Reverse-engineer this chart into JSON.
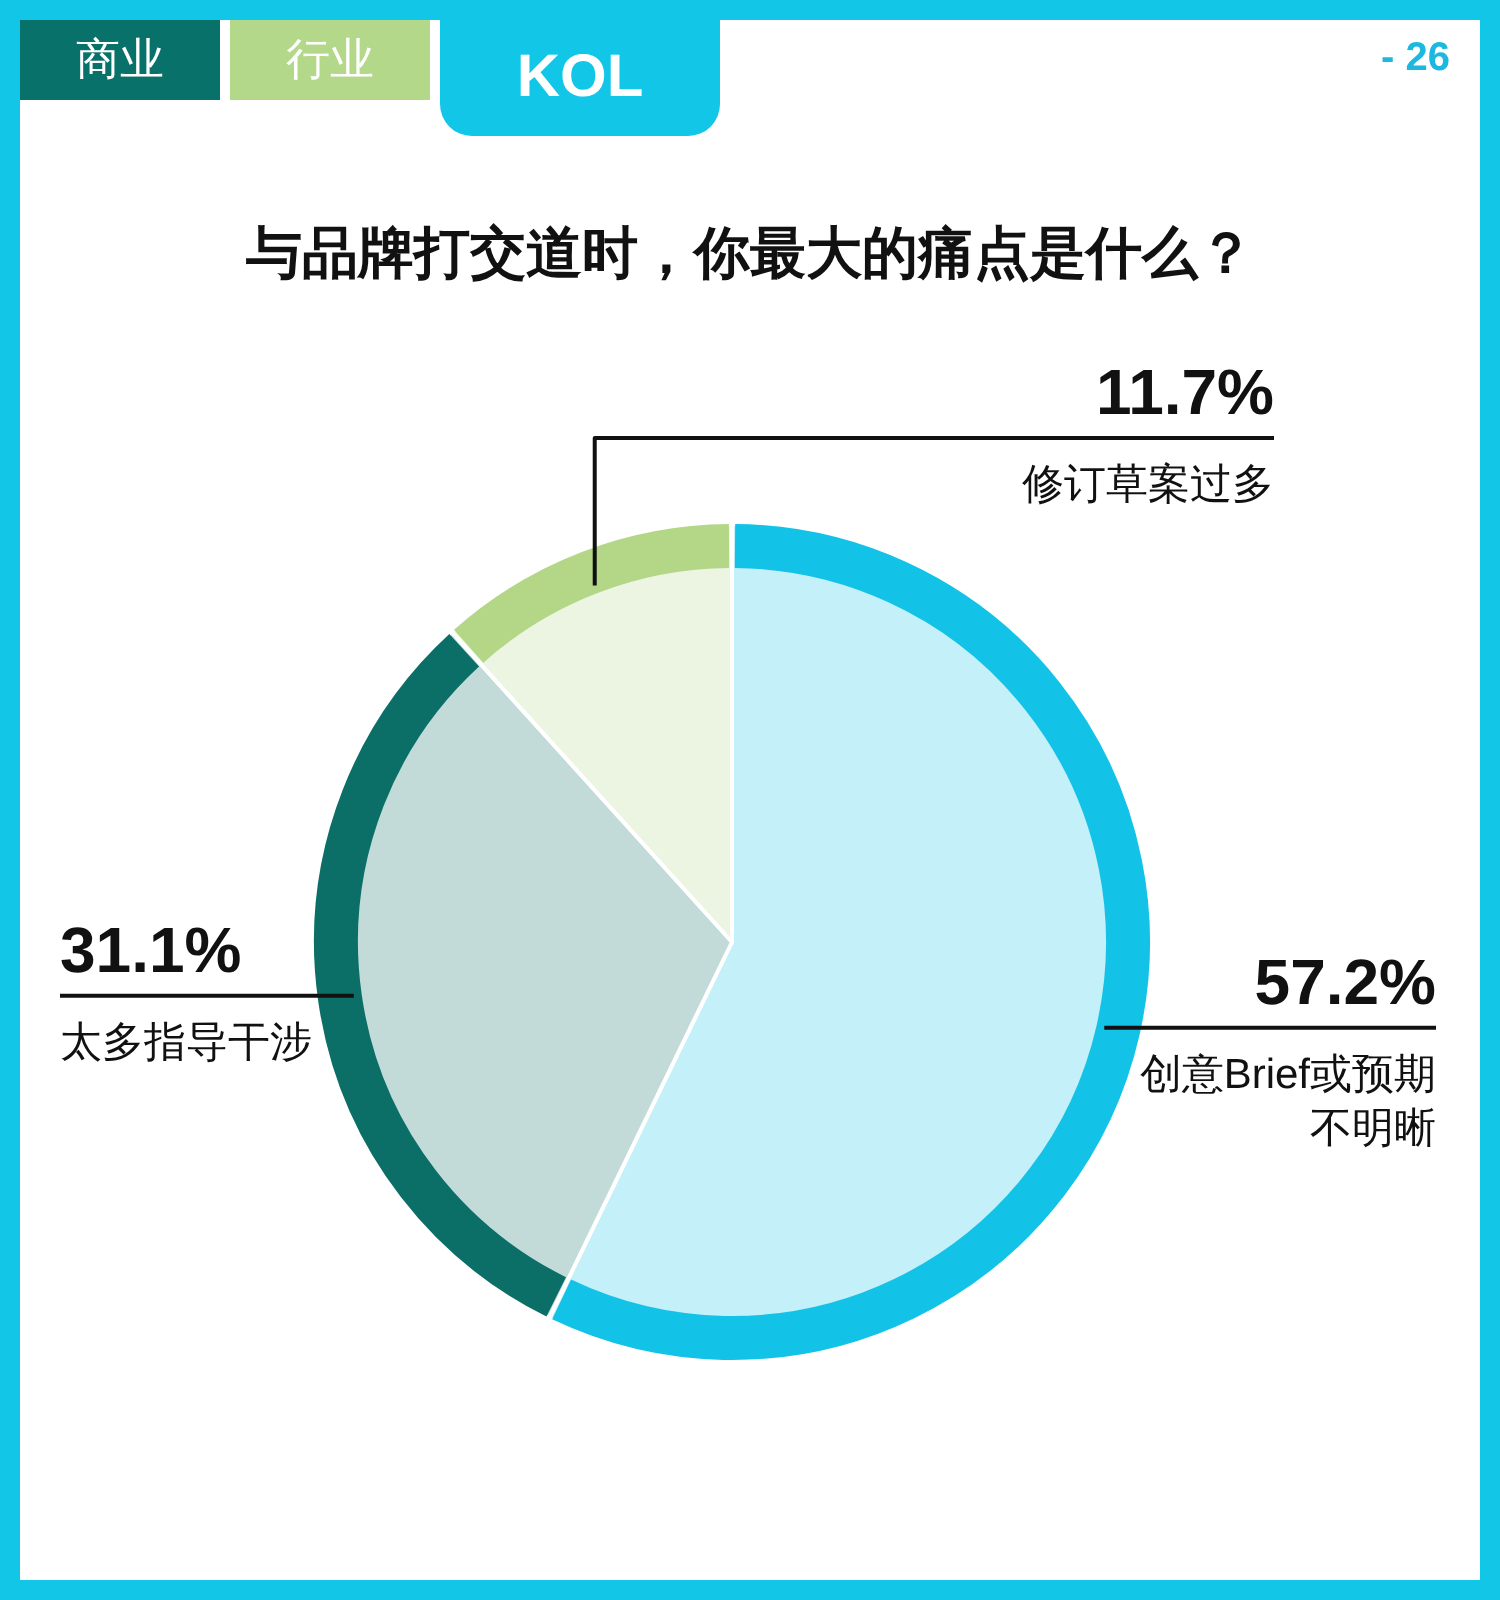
{
  "chart_data": {
    "type": "pie",
    "title": "与品牌打交道时，你最大的痛点是什么？",
    "categories": [
      "创意Brief或预期不明晰",
      "太多指导干涉",
      "修订草案过多"
    ],
    "values": [
      57.2,
      31.1,
      11.7
    ],
    "colors": [
      "#c4f0f9",
      "#c2dbd9",
      "#ecf5e1"
    ],
    "value_labels": [
      "57.2%",
      "31.1%",
      "11.7%"
    ],
    "annotations": [
      "商业",
      "行业",
      "KOL",
      "- 26"
    ]
  }
}
